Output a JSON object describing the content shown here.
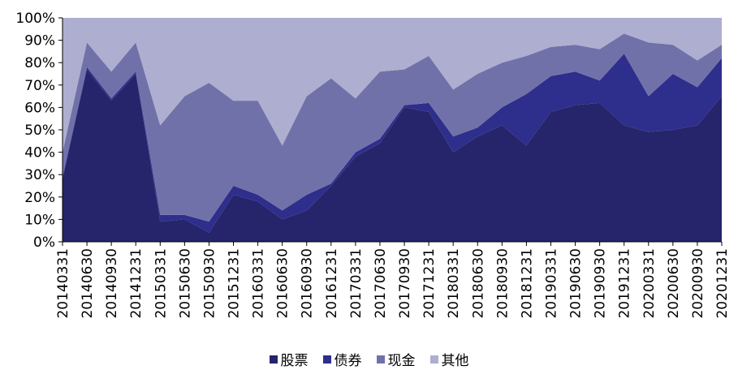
{
  "chart_data": {
    "type": "area",
    "stacked": true,
    "percent": true,
    "ylim": [
      0,
      100
    ],
    "yticks": [
      "0%",
      "10%",
      "20%",
      "30%",
      "40%",
      "50%",
      "60%",
      "70%",
      "80%",
      "90%",
      "100%"
    ],
    "categories": [
      "20140331",
      "20140630",
      "20140930",
      "20141231",
      "20150331",
      "20150630",
      "20150930",
      "20151231",
      "20160331",
      "20160630",
      "20160930",
      "20161231",
      "20170331",
      "20170630",
      "20170930",
      "20171231",
      "20180331",
      "20180630",
      "20180930",
      "20181231",
      "20190331",
      "20190630",
      "20190930",
      "20191231",
      "20200331",
      "20200630",
      "20200930",
      "20201231"
    ],
    "series": [
      {
        "name": "股票",
        "color": "#26246a",
        "values": [
          28,
          77,
          63,
          75,
          9,
          10,
          4,
          21,
          18,
          10,
          14,
          25,
          38,
          44,
          60,
          58,
          40,
          47,
          52,
          43,
          58,
          61,
          62,
          52,
          49,
          50,
          52,
          65
        ]
      },
      {
        "name": "债券",
        "color": "#2e2e8c",
        "values": [
          1,
          1,
          1,
          1,
          3,
          2,
          5,
          4,
          3,
          4,
          7,
          1,
          2,
          2,
          1,
          4,
          7,
          4,
          8,
          23,
          16,
          15,
          10,
          32,
          16,
          25,
          17,
          17
        ]
      },
      {
        "name": "现金",
        "color": "#7171aa",
        "values": [
          11,
          11,
          12,
          13,
          40,
          53,
          62,
          38,
          42,
          29,
          44,
          47,
          24,
          30,
          16,
          21,
          21,
          24,
          20,
          17,
          13,
          12,
          14,
          9,
          24,
          13,
          12,
          6
        ]
      },
      {
        "name": "其他",
        "color": "#aeaed0",
        "values": [
          60,
          11,
          24,
          11,
          48,
          35,
          29,
          37,
          37,
          57,
          35,
          27,
          36,
          24,
          23,
          17,
          32,
          25,
          20,
          17,
          13,
          12,
          14,
          7,
          11,
          12,
          19,
          12
        ]
      }
    ],
    "legend_position": "bottom"
  }
}
